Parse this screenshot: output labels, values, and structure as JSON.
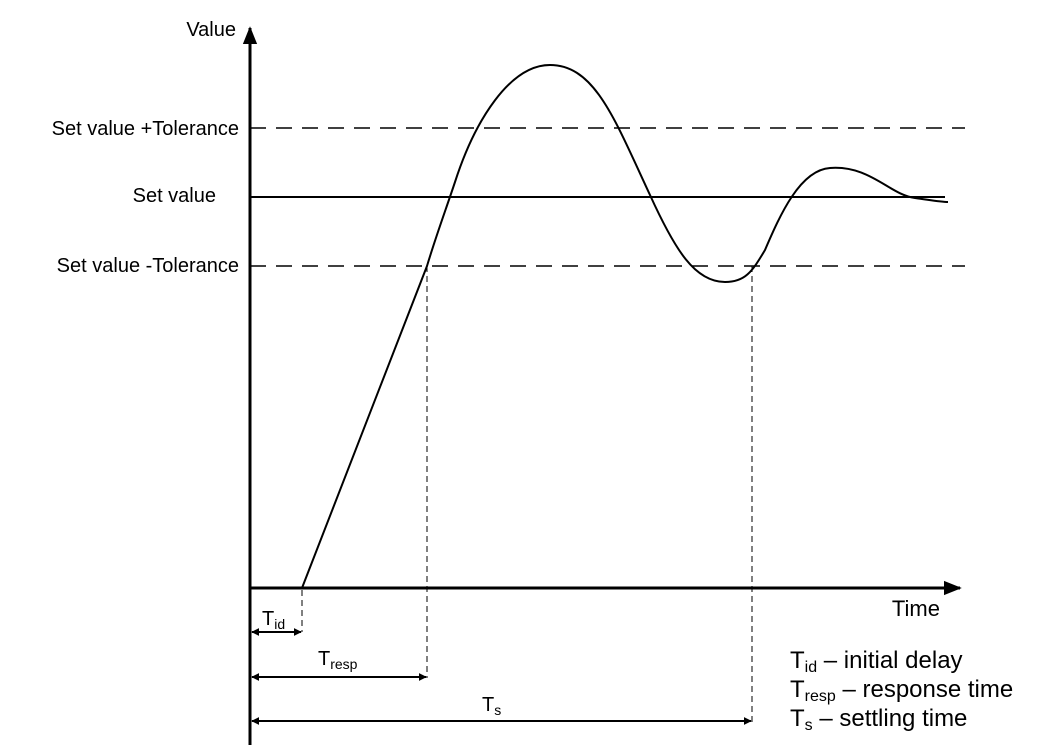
{
  "axes": {
    "y_label": "Value",
    "x_label": "Time"
  },
  "levels": {
    "upper": "Set value +Tolerance",
    "set": "Set value",
    "lower": "Set value -Tolerance"
  },
  "intervals": {
    "initial_delay": {
      "base": "T",
      "sub": "id"
    },
    "response": {
      "base": "T",
      "sub": "resp"
    },
    "settling": {
      "base": "T",
      "sub": "s"
    }
  },
  "legend": [
    {
      "base": "T",
      "sub": "id",
      "text": " – initial delay"
    },
    {
      "base": "T",
      "sub": "resp",
      "text": " – response time"
    },
    {
      "base": "T",
      "sub": "s",
      "text": " – settling time"
    }
  ]
}
